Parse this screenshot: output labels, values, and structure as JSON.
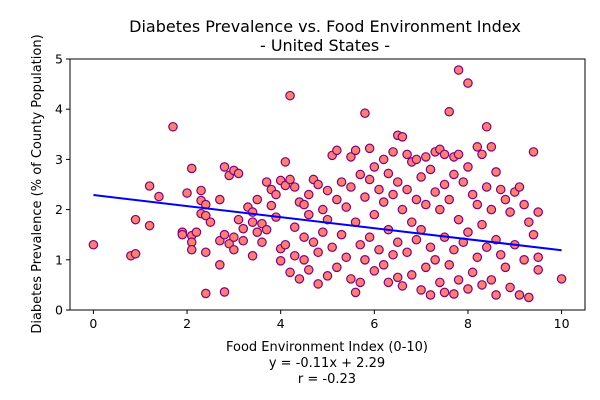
{
  "chart_data": {
    "type": "scatter",
    "title_line1": "Diabetes Prevalence vs. Food Environment Index",
    "title_line2": "- United States -",
    "xlabel": "Food Environment Index (0-10)",
    "ylabel": "Diabetes Prevalence (% of County Population)",
    "xlim": [
      -0.5,
      10.5
    ],
    "ylim": [
      0,
      5
    ],
    "x_ticks": [
      0,
      2,
      4,
      6,
      8,
      10
    ],
    "y_ticks": [
      0,
      1,
      2,
      3,
      4,
      5
    ],
    "x_tick_labels": [
      "0",
      "2",
      "4",
      "6",
      "8",
      "10"
    ],
    "y_tick_labels": [
      "0",
      "1",
      "2",
      "3",
      "4",
      "5"
    ],
    "grid": false,
    "marker_fill": "#fa8072",
    "marker_edge": "#800080",
    "line_color": "#0000ff",
    "regression": {
      "slope": -0.11,
      "intercept": 2.29
    },
    "equation_text": "y = -0.11x + 2.29",
    "r_text": "r = -0.23",
    "points": [
      [
        0.0,
        1.3
      ],
      [
        0.8,
        1.08
      ],
      [
        0.9,
        1.8
      ],
      [
        0.9,
        1.12
      ],
      [
        1.2,
        2.47
      ],
      [
        1.2,
        1.68
      ],
      [
        1.4,
        2.26
      ],
      [
        1.7,
        3.65
      ],
      [
        1.9,
        1.55
      ],
      [
        1.9,
        1.5
      ],
      [
        2.0,
        2.33
      ],
      [
        2.1,
        2.82
      ],
      [
        2.1,
        1.48
      ],
      [
        2.1,
        1.35
      ],
      [
        2.1,
        1.2
      ],
      [
        2.2,
        1.55
      ],
      [
        2.3,
        2.38
      ],
      [
        2.3,
        2.18
      ],
      [
        2.3,
        1.92
      ],
      [
        2.4,
        2.1
      ],
      [
        2.4,
        1.88
      ],
      [
        2.4,
        1.15
      ],
      [
        2.4,
        0.33
      ],
      [
        2.5,
        1.75
      ],
      [
        2.7,
        2.2
      ],
      [
        2.7,
        1.38
      ],
      [
        2.7,
        0.9
      ],
      [
        2.8,
        2.85
      ],
      [
        2.8,
        1.5
      ],
      [
        2.8,
        0.36
      ],
      [
        2.9,
        2.68
      ],
      [
        2.9,
        1.32
      ],
      [
        3.0,
        2.78
      ],
      [
        3.0,
        1.45
      ],
      [
        3.0,
        1.2
      ],
      [
        3.1,
        2.72
      ],
      [
        3.1,
        1.8
      ],
      [
        3.2,
        1.62
      ],
      [
        3.2,
        1.38
      ],
      [
        3.3,
        2.05
      ],
      [
        3.4,
        1.95
      ],
      [
        3.4,
        1.75
      ],
      [
        3.4,
        1.08
      ],
      [
        3.5,
        2.2
      ],
      [
        3.5,
        1.55
      ],
      [
        3.6,
        1.72
      ],
      [
        3.6,
        1.35
      ],
      [
        3.7,
        2.55
      ],
      [
        3.7,
        1.6
      ],
      [
        3.8,
        2.4
      ],
      [
        3.8,
        2.08
      ],
      [
        3.9,
        2.3
      ],
      [
        3.9,
        1.85
      ],
      [
        4.0,
        2.58
      ],
      [
        4.0,
        1.22
      ],
      [
        4.0,
        0.98
      ],
      [
        4.1,
        2.95
      ],
      [
        4.1,
        2.48
      ],
      [
        4.1,
        1.3
      ],
      [
        4.2,
        4.27
      ],
      [
        4.2,
        2.6
      ],
      [
        4.2,
        0.75
      ],
      [
        4.3,
        2.45
      ],
      [
        4.3,
        1.65
      ],
      [
        4.3,
        1.08
      ],
      [
        4.4,
        2.15
      ],
      [
        4.4,
        0.62
      ],
      [
        4.5,
        2.1
      ],
      [
        4.5,
        1.45
      ],
      [
        4.5,
        1.0
      ],
      [
        4.6,
        2.3
      ],
      [
        4.6,
        1.9
      ],
      [
        4.6,
        0.8
      ],
      [
        4.7,
        2.6
      ],
      [
        4.7,
        1.35
      ],
      [
        4.8,
        2.5
      ],
      [
        4.8,
        1.15
      ],
      [
        4.8,
        0.52
      ],
      [
        4.9,
        2.0
      ],
      [
        4.9,
        1.55
      ],
      [
        5.0,
        2.38
      ],
      [
        5.0,
        1.8
      ],
      [
        5.0,
        0.68
      ],
      [
        5.1,
        3.08
      ],
      [
        5.1,
        1.25
      ],
      [
        5.2,
        3.18
      ],
      [
        5.2,
        2.2
      ],
      [
        5.2,
        0.85
      ],
      [
        5.3,
        2.55
      ],
      [
        5.3,
        1.5
      ],
      [
        5.4,
        2.05
      ],
      [
        5.4,
        1.05
      ],
      [
        5.5,
        3.05
      ],
      [
        5.5,
        2.45
      ],
      [
        5.5,
        0.62
      ],
      [
        5.6,
        3.18
      ],
      [
        5.6,
        1.75
      ],
      [
        5.6,
        0.35
      ],
      [
        5.7,
        2.7
      ],
      [
        5.7,
        1.3
      ],
      [
        5.7,
        0.55
      ],
      [
        5.8,
        3.92
      ],
      [
        5.8,
        2.25
      ],
      [
        5.8,
        1.0
      ],
      [
        5.9,
        3.22
      ],
      [
        5.9,
        2.6
      ],
      [
        5.9,
        1.45
      ],
      [
        6.0,
        2.85
      ],
      [
        6.0,
        1.9
      ],
      [
        6.0,
        0.78
      ],
      [
        6.1,
        2.4
      ],
      [
        6.1,
        1.2
      ],
      [
        6.2,
        3.0
      ],
      [
        6.2,
        2.15
      ],
      [
        6.2,
        0.9
      ],
      [
        6.3,
        2.72
      ],
      [
        6.3,
        1.6
      ],
      [
        6.3,
        0.55
      ],
      [
        6.4,
        3.15
      ],
      [
        6.4,
        2.3
      ],
      [
        6.4,
        1.1
      ],
      [
        6.5,
        3.48
      ],
      [
        6.5,
        2.55
      ],
      [
        6.5,
        1.35
      ],
      [
        6.5,
        0.65
      ],
      [
        6.6,
        3.45
      ],
      [
        6.6,
        2.0
      ],
      [
        6.6,
        0.48
      ],
      [
        6.7,
        3.1
      ],
      [
        6.7,
        2.4
      ],
      [
        6.7,
        1.15
      ],
      [
        6.8,
        2.95
      ],
      [
        6.8,
        1.75
      ],
      [
        6.8,
        0.7
      ],
      [
        6.9,
        3.0
      ],
      [
        6.9,
        2.2
      ],
      [
        6.9,
        1.4
      ],
      [
        7.0,
        2.65
      ],
      [
        7.0,
        1.6
      ],
      [
        7.0,
        0.4
      ],
      [
        7.1,
        3.05
      ],
      [
        7.1,
        2.1
      ],
      [
        7.1,
        0.85
      ],
      [
        7.2,
        2.8
      ],
      [
        7.2,
        1.25
      ],
      [
        7.2,
        0.3
      ],
      [
        7.3,
        3.15
      ],
      [
        7.3,
        2.35
      ],
      [
        7.3,
        1.0
      ],
      [
        7.4,
        3.2
      ],
      [
        7.4,
        2.0
      ],
      [
        7.4,
        0.55
      ],
      [
        7.5,
        3.1
      ],
      [
        7.5,
        2.5
      ],
      [
        7.5,
        1.45
      ],
      [
        7.5,
        0.35
      ],
      [
        7.6,
        3.95
      ],
      [
        7.6,
        2.2
      ],
      [
        7.6,
        0.9
      ],
      [
        7.7,
        3.05
      ],
      [
        7.7,
        2.7
      ],
      [
        7.7,
        1.2
      ],
      [
        7.7,
        0.32
      ],
      [
        7.8,
        4.78
      ],
      [
        7.8,
        3.1
      ],
      [
        7.8,
        1.8
      ],
      [
        7.8,
        0.6
      ],
      [
        7.9,
        2.55
      ],
      [
        7.9,
        1.35
      ],
      [
        8.0,
        4.52
      ],
      [
        8.0,
        2.85
      ],
      [
        8.0,
        1.55
      ],
      [
        8.0,
        0.42
      ],
      [
        8.1,
        2.3
      ],
      [
        8.1,
        0.75
      ],
      [
        8.2,
        3.25
      ],
      [
        8.2,
        2.1
      ],
      [
        8.2,
        1.05
      ],
      [
        8.3,
        3.1
      ],
      [
        8.3,
        1.7
      ],
      [
        8.3,
        0.5
      ],
      [
        8.4,
        3.65
      ],
      [
        8.4,
        2.45
      ],
      [
        8.4,
        1.25
      ],
      [
        8.5,
        3.25
      ],
      [
        8.5,
        2.0
      ],
      [
        8.5,
        0.6
      ],
      [
        8.6,
        2.75
      ],
      [
        8.6,
        1.4
      ],
      [
        8.6,
        0.3
      ],
      [
        8.7,
        2.4
      ],
      [
        8.7,
        1.1
      ],
      [
        8.8,
        2.2
      ],
      [
        8.8,
        0.85
      ],
      [
        8.9,
        1.95
      ],
      [
        8.9,
        0.45
      ],
      [
        9.0,
        2.35
      ],
      [
        9.0,
        1.3
      ],
      [
        9.1,
        2.45
      ],
      [
        9.1,
        0.3
      ],
      [
        9.2,
        2.1
      ],
      [
        9.2,
        1.0
      ],
      [
        9.3,
        0.25
      ],
      [
        9.3,
        1.75
      ],
      [
        9.4,
        3.15
      ],
      [
        9.4,
        1.5
      ],
      [
        9.5,
        1.95
      ],
      [
        9.5,
        1.05
      ],
      [
        9.5,
        0.8
      ],
      [
        10.0,
        0.62
      ]
    ]
  }
}
